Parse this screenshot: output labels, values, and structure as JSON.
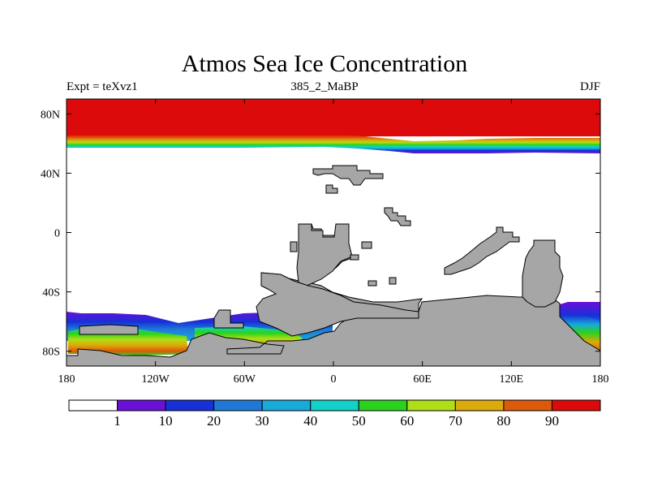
{
  "title": "Atmos Sea Ice Concentration",
  "subtitle_left": "Expt = teXvz1",
  "subtitle_center": "385_2_MaBP",
  "subtitle_right": "DJF",
  "y_ticks": [
    {
      "label": "80N",
      "lat": 80
    },
    {
      "label": "40N",
      "lat": 40
    },
    {
      "label": "0",
      "lat": 0
    },
    {
      "label": "40S",
      "lat": -40
    },
    {
      "label": "80S",
      "lat": -80
    }
  ],
  "x_ticks": [
    {
      "label": "180",
      "lon": -180
    },
    {
      "label": "120W",
      "lon": -120
    },
    {
      "label": "60W",
      "lon": -60
    },
    {
      "label": "0",
      "lon": 0
    },
    {
      "label": "60E",
      "lon": 60
    },
    {
      "label": "120E",
      "lon": 120
    },
    {
      "label": "180",
      "lon": 180
    }
  ],
  "colorbar": {
    "colors": [
      "#ffffff",
      "#6a0fd8",
      "#1730d8",
      "#1f78d8",
      "#18aad8",
      "#10d2c8",
      "#2ad21e",
      "#aede14",
      "#dcaa0a",
      "#dc5a0a",
      "#dc0a0a"
    ],
    "labels": [
      "1",
      "10",
      "20",
      "30",
      "40",
      "50",
      "60",
      "70",
      "80",
      "90"
    ]
  },
  "colors": {
    "land": "#a6a6a6",
    "ice_high": "#dc0a0a",
    "coast": "#000000"
  }
}
